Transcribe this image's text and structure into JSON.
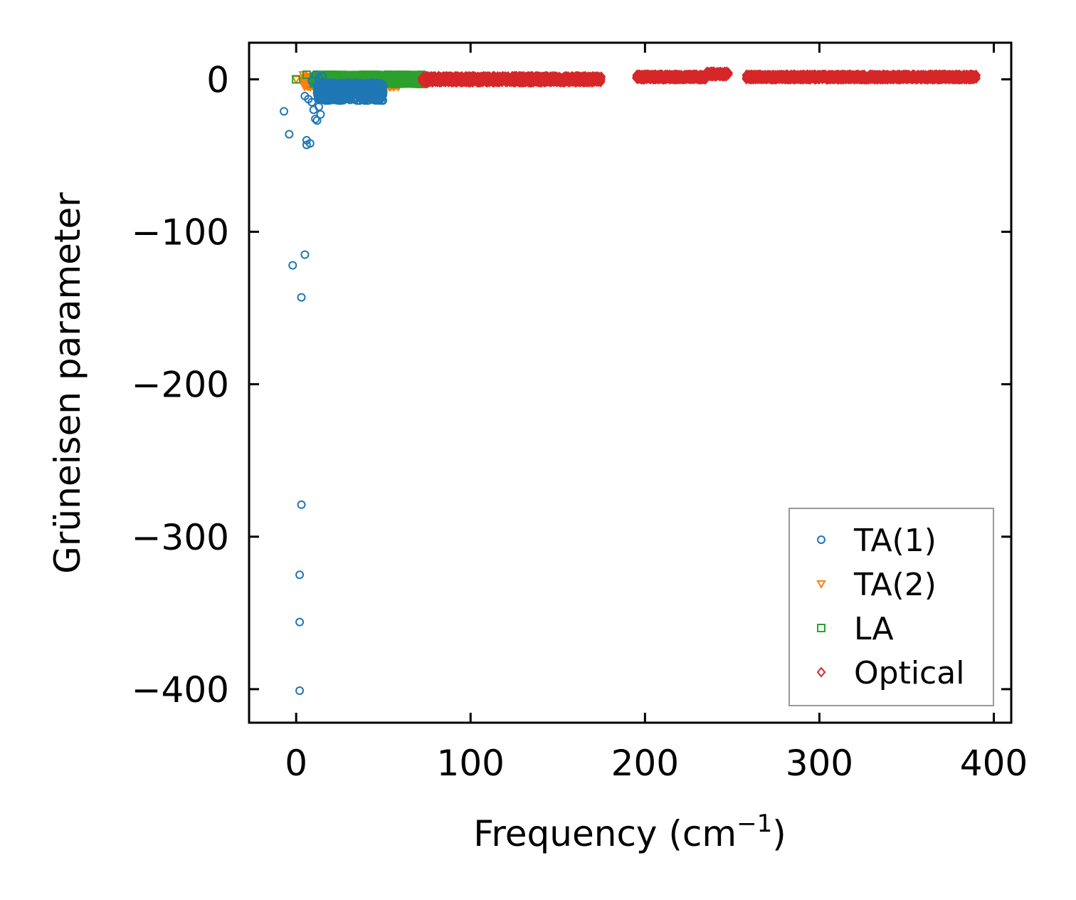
{
  "chart_data": {
    "type": "scatter",
    "title": "",
    "xlabel": "Frequency (cm",
    "xlabel_superscript": "−1",
    "xlabel_suffix": ")",
    "ylabel": "Grüneisen parameter",
    "xlim": [
      -27,
      410
    ],
    "ylim": [
      -422,
      24
    ],
    "xticks": [
      0,
      100,
      200,
      300,
      400
    ],
    "xtick_labels": [
      "0",
      "100",
      "200",
      "300",
      "400"
    ],
    "yticks": [
      0,
      -100,
      -200,
      -300,
      -400
    ],
    "ytick_labels": [
      "0",
      "−100",
      "−200",
      "−300",
      "−400"
    ],
    "grid": false,
    "legend_position": "bottom-right",
    "series": [
      {
        "name": "TA(1)",
        "marker": "circle",
        "color": "#1f77b4",
        "points": [
          [
            -7,
            -21
          ],
          [
            -4,
            -36
          ],
          [
            -2,
            -122
          ],
          [
            3,
            -143
          ],
          [
            3,
            -279
          ],
          [
            2,
            -325
          ],
          [
            2,
            -356
          ],
          [
            2,
            -401
          ],
          [
            5,
            -115
          ],
          [
            6,
            -40
          ],
          [
            6,
            -43
          ],
          [
            8,
            -42
          ],
          [
            5,
            -11
          ],
          [
            7,
            -13
          ],
          [
            9,
            -15
          ],
          [
            11,
            -26
          ],
          [
            12,
            -27
          ],
          [
            10,
            -20
          ],
          [
            12,
            -9
          ],
          [
            13,
            -18
          ],
          [
            14,
            -23
          ],
          [
            9,
            -1
          ],
          [
            11,
            3
          ],
          [
            13,
            1
          ],
          [
            15,
            2
          ],
          [
            16,
            -2
          ],
          [
            17,
            -4
          ],
          [
            15,
            -12
          ],
          [
            16,
            -8
          ],
          [
            17,
            -14
          ],
          [
            18,
            -10
          ],
          [
            19,
            -6
          ],
          [
            20,
            -7
          ],
          [
            22,
            -9
          ],
          [
            24,
            -5
          ],
          [
            26,
            -7
          ],
          [
            28,
            -6
          ],
          [
            30,
            -5
          ],
          [
            32,
            -4
          ],
          [
            35,
            -4
          ],
          [
            38,
            -5
          ],
          [
            42,
            -3
          ],
          [
            46,
            -4
          ],
          [
            50,
            -4
          ]
        ],
        "dense_bands": [
          [
            12,
            50,
            -14,
            -2
          ]
        ]
      },
      {
        "name": "TA(2)",
        "marker": "triangle-down",
        "color": "#ff7f0e",
        "points": [
          [
            0,
            0
          ],
          [
            4,
            3
          ],
          [
            8,
            2
          ],
          [
            14,
            1
          ],
          [
            20,
            0
          ],
          [
            26,
            -1
          ],
          [
            32,
            -2
          ],
          [
            38,
            -3
          ],
          [
            44,
            -2
          ],
          [
            50,
            -3
          ],
          [
            55,
            -4
          ],
          [
            58,
            -2
          ]
        ],
        "dense_bands": [
          [
            4,
            60,
            -5,
            2
          ]
        ]
      },
      {
        "name": "LA",
        "marker": "square",
        "color": "#2ca02c",
        "points": [
          [
            0,
            0
          ],
          [
            6,
            3
          ],
          [
            12,
            3
          ],
          [
            18,
            3
          ],
          [
            24,
            2
          ],
          [
            30,
            1
          ],
          [
            36,
            0
          ],
          [
            42,
            0
          ],
          [
            48,
            -1
          ],
          [
            54,
            -1
          ],
          [
            60,
            -1
          ],
          [
            66,
            -2
          ],
          [
            72,
            -2
          ]
        ],
        "dense_bands": [
          [
            10,
            74,
            -3,
            3
          ]
        ]
      },
      {
        "name": "Optical",
        "marker": "diamond",
        "color": "#d62728",
        "points": [],
        "dense_bands": [
          [
            72,
            175,
            -2,
            2
          ],
          [
            195,
            235,
            0,
            3
          ],
          [
            235,
            248,
            2,
            5
          ],
          [
            258,
            390,
            0,
            3
          ]
        ]
      }
    ]
  }
}
